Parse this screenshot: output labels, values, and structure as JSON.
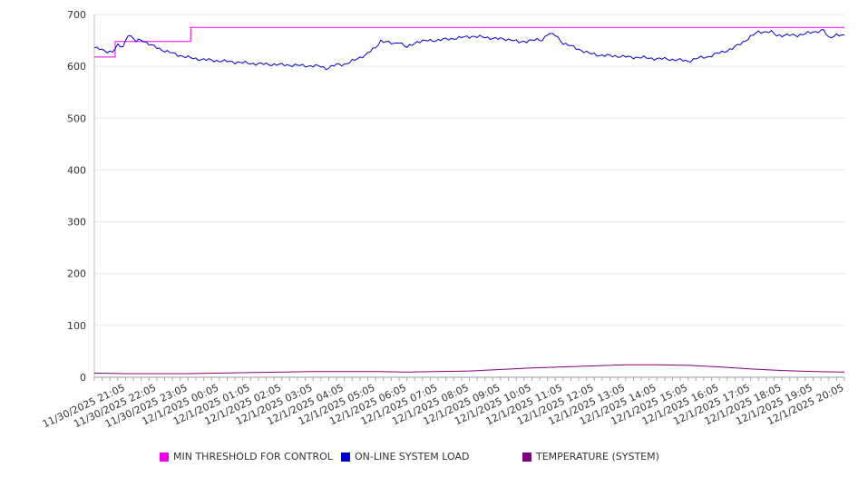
{
  "chart_data": {
    "type": "line",
    "title": "",
    "xlabel": "",
    "ylabel": "",
    "ylim": [
      0,
      700
    ],
    "yticks": [
      0,
      100,
      200,
      300,
      400,
      500,
      600,
      700
    ],
    "grid": true,
    "legend_position": "bottom",
    "x_start": "11/30/2025 20:05",
    "x_step_minutes": 5,
    "xtick_labels": [
      "11/30/2025 21:05",
      "11/30/2025 22:05",
      "11/30/2025 23:05",
      "12/1/2025 00:05",
      "12/1/2025 01:05",
      "12/1/2025 02:05",
      "12/1/2025 03:05",
      "12/1/2025 04:05",
      "12/1/2025 05:05",
      "12/1/2025 06:05",
      "12/1/2025 07:05",
      "12/1/2025 08:05",
      "12/1/2025 09:05",
      "12/1/2025 10:05",
      "12/1/2025 11:05",
      "12/1/2025 12:05",
      "12/1/2025 13:05",
      "12/1/2025 14:05",
      "12/1/2025 15:05",
      "12/1/2025 16:05",
      "12/1/2025 17:05",
      "12/1/2025 18:05",
      "12/1/2025 19:05",
      "12/1/2025 20:05"
    ],
    "series": [
      {
        "name": "MIN THRESHOLD FOR CONTROL",
        "color": "#ee00ee",
        "style": "step",
        "values": [
          [
            0,
            618
          ],
          [
            8,
            618
          ],
          [
            8,
            648
          ],
          [
            37,
            648
          ],
          [
            37,
            675
          ],
          [
            288,
            675
          ]
        ]
      },
      {
        "name": "ON-LINE SYSTEM LOAD",
        "color": "#0000cc",
        "style": "line",
        "values": [
          [
            0,
            636
          ],
          [
            4,
            630
          ],
          [
            7,
            628
          ],
          [
            9,
            640
          ],
          [
            11,
            638
          ],
          [
            13,
            662
          ],
          [
            16,
            648
          ],
          [
            18,
            652
          ],
          [
            22,
            640
          ],
          [
            27,
            630
          ],
          [
            32,
            622
          ],
          [
            37,
            616
          ],
          [
            42,
            613
          ],
          [
            47,
            611
          ],
          [
            52,
            609
          ],
          [
            57,
            607
          ],
          [
            62,
            605
          ],
          [
            67,
            604
          ],
          [
            72,
            603
          ],
          [
            77,
            602
          ],
          [
            82,
            601
          ],
          [
            87,
            600
          ],
          [
            89,
            596
          ],
          [
            93,
            603
          ],
          [
            96,
            604
          ],
          [
            100,
            612
          ],
          [
            104,
            622
          ],
          [
            108,
            636
          ],
          [
            110,
            650
          ],
          [
            115,
            643
          ],
          [
            117,
            648
          ],
          [
            120,
            636
          ],
          [
            124,
            648
          ],
          [
            130,
            650
          ],
          [
            135,
            652
          ],
          [
            140,
            655
          ],
          [
            145,
            658
          ],
          [
            150,
            656
          ],
          [
            155,
            653
          ],
          [
            160,
            652
          ],
          [
            163,
            646
          ],
          [
            167,
            650
          ],
          [
            172,
            651
          ],
          [
            174,
            663
          ],
          [
            177,
            660
          ],
          [
            180,
            645
          ],
          [
            185,
            635
          ],
          [
            190,
            625
          ],
          [
            195,
            621
          ],
          [
            200,
            620
          ],
          [
            205,
            618
          ],
          [
            210,
            617
          ],
          [
            215,
            615
          ],
          [
            220,
            614
          ],
          [
            225,
            612
          ],
          [
            228,
            610
          ],
          [
            232,
            616
          ],
          [
            236,
            619
          ],
          [
            240,
            626
          ],
          [
            245,
            634
          ],
          [
            250,
            650
          ],
          [
            255,
            667
          ],
          [
            260,
            666
          ],
          [
            262,
            660
          ],
          [
            270,
            660
          ],
          [
            275,
            665
          ],
          [
            280,
            670
          ],
          [
            282,
            654
          ],
          [
            285,
            662
          ],
          [
            288,
            658
          ]
        ]
      },
      {
        "name": "TEMPERATURE (SYSTEM)",
        "color": "#800080",
        "style": "line",
        "values": [
          [
            0,
            8
          ],
          [
            12,
            7
          ],
          [
            24,
            7
          ],
          [
            36,
            7
          ],
          [
            48,
            8
          ],
          [
            60,
            9
          ],
          [
            72,
            10
          ],
          [
            84,
            11
          ],
          [
            96,
            11
          ],
          [
            108,
            11
          ],
          [
            120,
            10
          ],
          [
            132,
            11
          ],
          [
            144,
            12
          ],
          [
            156,
            15
          ],
          [
            168,
            18
          ],
          [
            180,
            20
          ],
          [
            192,
            22
          ],
          [
            204,
            24
          ],
          [
            216,
            24
          ],
          [
            228,
            23
          ],
          [
            240,
            20
          ],
          [
            252,
            16
          ],
          [
            264,
            13
          ],
          [
            276,
            11
          ],
          [
            288,
            10
          ]
        ]
      }
    ]
  }
}
